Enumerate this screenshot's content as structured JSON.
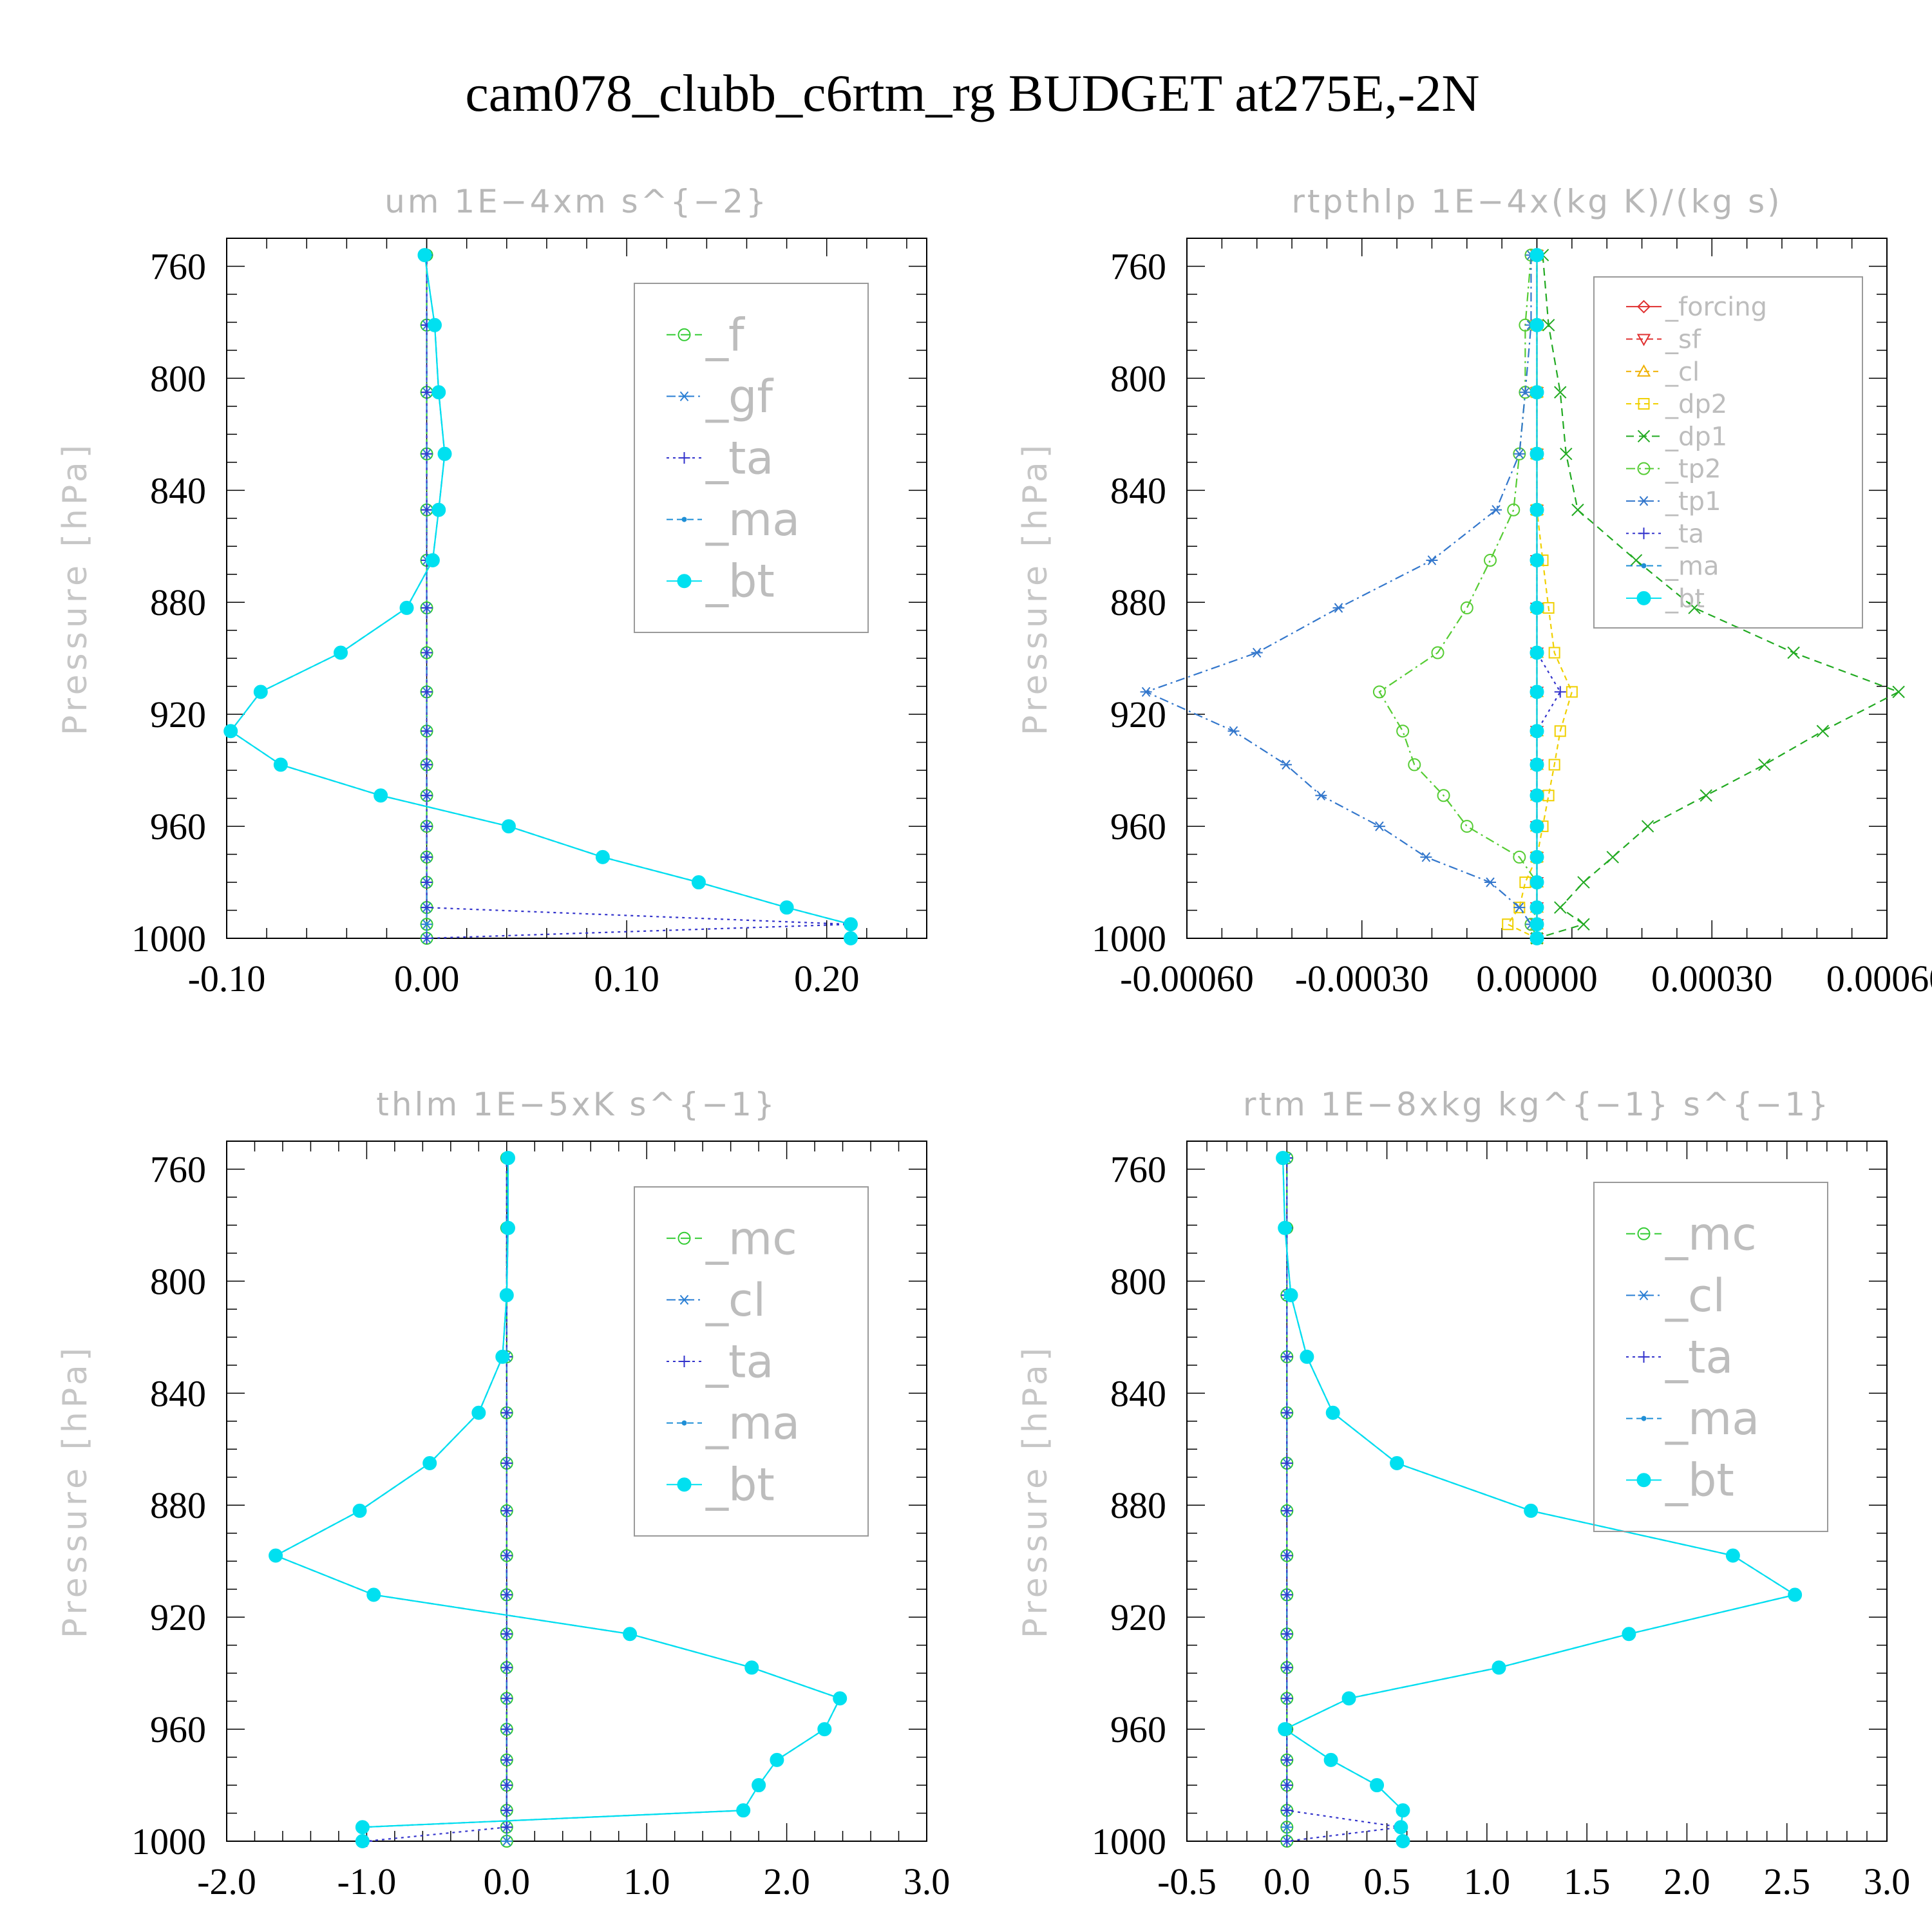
{
  "title": "cam078_clubb_c6rtm_rg  BUDGET at275E,-2N",
  "chart_data": [
    {
      "type": "line",
      "title": "um   1E−4xm s^{−2}",
      "ylabel": "Pressure [hPa]",
      "xlabel": "",
      "xlim": [
        -0.1,
        0.25
      ],
      "ylim": [
        750,
        1000
      ],
      "y_inverted": true,
      "x_ticks": [
        -0.1,
        0.0,
        0.1,
        0.2
      ],
      "x_tick_labels": [
        "-0.10",
        "0.00",
        "0.10",
        "0.20"
      ],
      "y_ticks": [
        760,
        800,
        840,
        880,
        920,
        960,
        1000
      ],
      "grid": false,
      "legend_position": "top-right",
      "legend_font": 70,
      "levels": [
        756,
        781,
        805,
        827,
        847,
        865,
        882,
        898,
        912,
        926,
        938,
        949,
        960,
        971,
        980,
        989,
        995,
        1000
      ],
      "series": [
        {
          "name": "_f",
          "color": "#33cc33",
          "dash": "14,8",
          "marker": "circle-open",
          "values": [
            0,
            0,
            0,
            0,
            0,
            0,
            0,
            0,
            0,
            0,
            0,
            0,
            0,
            0,
            0,
            0,
            0,
            0
          ]
        },
        {
          "name": "_gf",
          "color": "#2a7fd4",
          "dash": "14,6,3,6",
          "marker": "star",
          "values": [
            0,
            0,
            0,
            0,
            0,
            0,
            0,
            0,
            0,
            0,
            0,
            0,
            0,
            0,
            0,
            0,
            0,
            0
          ]
        },
        {
          "name": "_ta",
          "color": "#3333cc",
          "dash": "4,6",
          "marker": "plus",
          "values": [
            0,
            0,
            0,
            0,
            0,
            0,
            0,
            0,
            0,
            0,
            0,
            0,
            0,
            0,
            0,
            0,
            0.212,
            0
          ]
        },
        {
          "name": "_ma",
          "color": "#1f8fd6",
          "dash": "10,6",
          "marker": "dot",
          "values": [
            -0.001,
            0.004,
            0.006,
            0.009,
            0.006,
            0.003,
            -0.01,
            -0.043,
            -0.083,
            -0.098,
            -0.073,
            -0.023,
            0.041,
            0.088,
            0.136,
            0.18,
            0.212,
            0.212
          ]
        },
        {
          "name": "_bt",
          "color": "#00e0f0",
          "dash": "",
          "marker": "disc",
          "values": [
            -0.001,
            0.004,
            0.006,
            0.009,
            0.006,
            0.003,
            -0.01,
            -0.043,
            -0.083,
            -0.098,
            -0.073,
            -0.023,
            0.041,
            0.088,
            0.136,
            0.18,
            0.212,
            0.212
          ]
        }
      ]
    },
    {
      "type": "line",
      "title": "rtpthlp   1E−4x(kg K)/(kg s)",
      "ylabel": "Pressure [hPa]",
      "xlabel": "",
      "xlim": [
        -0.0006,
        0.0006
      ],
      "ylim": [
        750,
        1000
      ],
      "y_inverted": true,
      "x_ticks": [
        -0.0006,
        -0.0003,
        0.0,
        0.0003,
        0.0006
      ],
      "x_tick_labels": [
        "-0.00060",
        "-0.00030",
        "0.00000",
        "0.00030",
        "0.00060"
      ],
      "y_ticks": [
        760,
        800,
        840,
        880,
        920,
        960,
        1000
      ],
      "grid": false,
      "legend_position": "top-right",
      "legend_font": 40,
      "levels": [
        756,
        781,
        805,
        827,
        847,
        865,
        882,
        898,
        912,
        926,
        938,
        949,
        960,
        971,
        980,
        989,
        995,
        1000
      ],
      "series": [
        {
          "name": "_forcing",
          "color": "#e03030",
          "dash": "",
          "marker": "diamond",
          "values": [
            0,
            0,
            0,
            0,
            0,
            0,
            0,
            0,
            0,
            0,
            0,
            0,
            0,
            0,
            0,
            0,
            0,
            0
          ]
        },
        {
          "name": "_sf",
          "color": "#e03030",
          "dash": "10,6",
          "marker": "tri-down",
          "values": [
            0,
            0,
            0,
            0,
            0,
            0,
            0,
            0,
            0,
            0,
            0,
            0,
            0,
            0,
            0,
            0,
            0,
            0
          ]
        },
        {
          "name": "_cl",
          "color": "#f0b000",
          "dash": "8,6",
          "marker": "tri-up",
          "values": [
            0,
            0,
            0,
            0,
            0,
            0,
            0,
            0,
            0,
            0,
            0,
            0,
            0,
            0,
            0,
            0,
            0,
            0
          ]
        },
        {
          "name": "_dp2",
          "color": "#f0d000",
          "dash": "8,6",
          "marker": "square",
          "values": [
            0,
            0,
            0,
            0,
            0,
            1e-05,
            2e-05,
            3e-05,
            6e-05,
            4e-05,
            3e-05,
            2e-05,
            1e-05,
            0,
            -2e-05,
            -3e-05,
            -5e-05,
            0
          ]
        },
        {
          "name": "_dp1",
          "color": "#22aa22",
          "dash": "12,8",
          "marker": "x",
          "values": [
            1e-05,
            2e-05,
            4e-05,
            5e-05,
            7e-05,
            0.00017,
            0.00027,
            0.00044,
            0.00062,
            0.00049,
            0.00039,
            0.00029,
            0.00019,
            0.00013,
            8e-05,
            4e-05,
            8e-05,
            0
          ]
        },
        {
          "name": "_tp2",
          "color": "#55cc33",
          "dash": "14,6,3,6",
          "marker": "circle-open",
          "values": [
            -1e-05,
            -2e-05,
            -2e-05,
            -3e-05,
            -4e-05,
            -8e-05,
            -0.00012,
            -0.00017,
            -0.00027,
            -0.00023,
            -0.00021,
            -0.00016,
            -0.00012,
            -3e-05,
            0,
            0,
            -1e-05,
            0
          ]
        },
        {
          "name": "_tp1",
          "color": "#3377cc",
          "dash": "14,6,3,6",
          "marker": "star",
          "values": [
            -1e-05,
            -1e-05,
            -2e-05,
            -3e-05,
            -7e-05,
            -0.00018,
            -0.00034,
            -0.00048,
            -0.00067,
            -0.00052,
            -0.00043,
            -0.00037,
            -0.00027,
            -0.00019,
            -8e-05,
            -3e-05,
            -1e-05,
            0
          ]
        },
        {
          "name": "_ta",
          "color": "#3333cc",
          "dash": "4,6",
          "marker": "plus",
          "values": [
            0,
            0,
            0,
            0,
            0,
            0,
            0,
            0,
            4e-05,
            0,
            0,
            0,
            0,
            0,
            0,
            0,
            0,
            0
          ]
        },
        {
          "name": "_ma",
          "color": "#1f8fd6",
          "dash": "10,6",
          "marker": "dot",
          "values": [
            0,
            0,
            0,
            0,
            0,
            0,
            0,
            0,
            0,
            0,
            0,
            0,
            0,
            0,
            0,
            0,
            0,
            0
          ]
        },
        {
          "name": "_bt",
          "color": "#00e0f0",
          "dash": "",
          "marker": "disc",
          "values": [
            0,
            0,
            0,
            0,
            0,
            0,
            0,
            0,
            0,
            0,
            0,
            0,
            0,
            0,
            0,
            0,
            0,
            0
          ]
        }
      ]
    },
    {
      "type": "line",
      "title": "thlm   1E−5xK s^{−1}",
      "ylabel": "Pressure [hPa]",
      "xlabel": "",
      "xlim": [
        -2.0,
        3.0
      ],
      "ylim": [
        750,
        1000
      ],
      "y_inverted": true,
      "x_ticks": [
        -2.0,
        -1.0,
        0.0,
        1.0,
        2.0,
        3.0
      ],
      "x_tick_labels": [
        "-2.0",
        "-1.0",
        "0.0",
        "1.0",
        "2.0",
        "3.0"
      ],
      "y_ticks": [
        760,
        800,
        840,
        880,
        920,
        960,
        1000
      ],
      "grid": false,
      "legend_position": "top-right",
      "legend_font": 70,
      "levels": [
        756,
        781,
        805,
        827,
        847,
        865,
        882,
        898,
        912,
        926,
        938,
        949,
        960,
        971,
        980,
        989,
        995,
        1000
      ],
      "series": [
        {
          "name": "_mc",
          "color": "#33cc33",
          "dash": "14,8",
          "marker": "circle-open",
          "values": [
            0,
            0,
            0,
            0,
            0,
            0,
            0,
            0,
            0,
            0,
            0,
            0,
            0,
            0,
            0,
            0,
            0,
            0
          ]
        },
        {
          "name": "_cl",
          "color": "#2a7fd4",
          "dash": "14,6,3,6",
          "marker": "star",
          "values": [
            0,
            0,
            0,
            0,
            0,
            0,
            0,
            0,
            0,
            0,
            0,
            0,
            0,
            0,
            0,
            0,
            0,
            0
          ]
        },
        {
          "name": "_ta",
          "color": "#3333cc",
          "dash": "4,6",
          "marker": "plus",
          "values": [
            0,
            0,
            0,
            0,
            0,
            0,
            0,
            0,
            0,
            0,
            0,
            0,
            0,
            0,
            0,
            0,
            0,
            -1.0
          ]
        },
        {
          "name": "_ma",
          "color": "#1f8fd6",
          "dash": "10,6",
          "marker": "dot",
          "values": [
            0.01,
            0.01,
            0.0,
            -0.03,
            -0.2,
            -0.55,
            -1.05,
            -1.65,
            -0.95,
            0.88,
            1.75,
            2.38,
            2.27,
            1.93,
            1.8,
            1.69,
            -1.03,
            -1.03
          ]
        },
        {
          "name": "_bt",
          "color": "#00e0f0",
          "dash": "",
          "marker": "disc",
          "values": [
            0.01,
            0.01,
            0.0,
            -0.03,
            -0.2,
            -0.55,
            -1.05,
            -1.65,
            -0.95,
            0.88,
            1.75,
            2.38,
            2.27,
            1.93,
            1.8,
            1.69,
            -1.03,
            -1.03
          ]
        }
      ]
    },
    {
      "type": "line",
      "title": "rtm   1E−8xkg kg^{−1} s^{−1}",
      "ylabel": "Pressure [hPa]",
      "xlabel": "",
      "xlim": [
        -0.5,
        3.0
      ],
      "ylim": [
        750,
        1000
      ],
      "y_inverted": true,
      "x_ticks": [
        -0.5,
        0.0,
        0.5,
        1.0,
        1.5,
        2.0,
        2.5,
        3.0
      ],
      "x_tick_labels": [
        "-0.5",
        "0.0",
        "0.5",
        "1.0",
        "1.5",
        "2.0",
        "2.5",
        "3.0"
      ],
      "y_ticks": [
        760,
        800,
        840,
        880,
        920,
        960,
        1000
      ],
      "grid": false,
      "legend_position": "top-right",
      "legend_font": 70,
      "levels": [
        756,
        781,
        805,
        827,
        847,
        865,
        882,
        898,
        912,
        926,
        938,
        949,
        960,
        971,
        980,
        989,
        995,
        1000
      ],
      "series": [
        {
          "name": "_mc",
          "color": "#33cc33",
          "dash": "14,8",
          "marker": "circle-open",
          "values": [
            0,
            0,
            0,
            0,
            0,
            0,
            0,
            0,
            0,
            0,
            0,
            0,
            0,
            0,
            0,
            0,
            0,
            0
          ]
        },
        {
          "name": "_cl",
          "color": "#2a7fd4",
          "dash": "14,6,3,6",
          "marker": "star",
          "values": [
            0,
            0,
            0,
            0,
            0,
            0,
            0,
            0,
            0,
            0,
            0,
            0,
            0,
            0,
            0,
            0,
            0,
            0
          ]
        },
        {
          "name": "_ta",
          "color": "#3333cc",
          "dash": "4,6",
          "marker": "plus",
          "values": [
            0,
            0,
            0,
            0,
            0,
            0,
            0,
            0,
            0,
            0,
            0,
            0,
            0,
            0,
            0,
            0,
            0.57,
            0
          ]
        },
        {
          "name": "_ma",
          "color": "#1f8fd6",
          "dash": "10,6",
          "marker": "dot",
          "values": [
            -0.02,
            -0.01,
            0.02,
            0.1,
            0.23,
            0.55,
            1.22,
            2.23,
            2.54,
            1.71,
            1.06,
            0.31,
            -0.01,
            0.22,
            0.45,
            0.58,
            0.57,
            0.58
          ]
        },
        {
          "name": "_bt",
          "color": "#00e0f0",
          "dash": "",
          "marker": "disc",
          "values": [
            -0.02,
            -0.01,
            0.02,
            0.1,
            0.23,
            0.55,
            1.22,
            2.23,
            2.54,
            1.71,
            1.06,
            0.31,
            -0.01,
            0.22,
            0.45,
            0.58,
            0.57,
            0.58
          ]
        }
      ]
    }
  ]
}
